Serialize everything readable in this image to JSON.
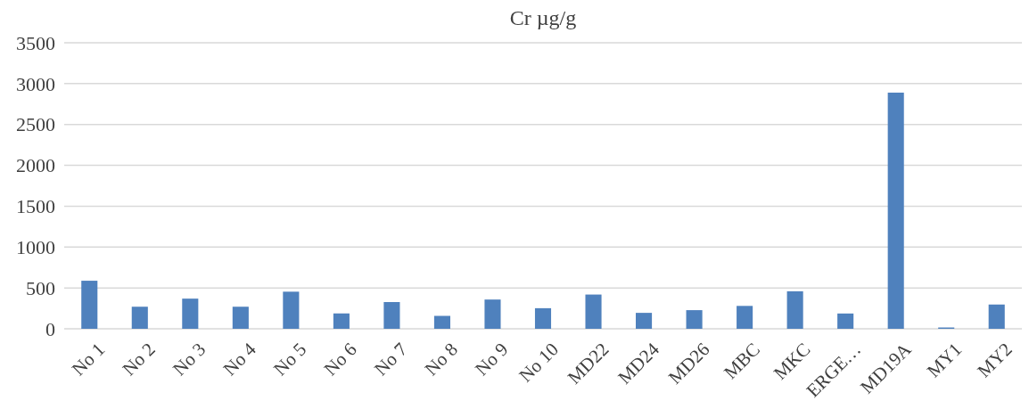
{
  "chart_data": {
    "type": "bar",
    "title": "Cr µg/g",
    "categories": [
      "No 1",
      "No 2",
      "No 3",
      "No 4",
      "No 5",
      "No 6",
      "No 7",
      "No 8",
      "No 9",
      "No 10",
      "MD22",
      "MD24",
      "MD26",
      "MBC",
      "MKC",
      "ERGE…",
      "MD19A",
      "MY1",
      "MY2"
    ],
    "values": [
      588,
      270,
      369,
      270,
      454,
      188,
      327,
      158,
      358,
      252,
      419,
      195,
      228,
      280,
      459,
      187,
      2890,
      16,
      297
    ],
    "color": "#4f81bd",
    "ylim": [
      0,
      3500
    ],
    "yticks": [
      0,
      500,
      1000,
      1500,
      2000,
      2500,
      3000,
      3500
    ],
    "grid": "y"
  }
}
